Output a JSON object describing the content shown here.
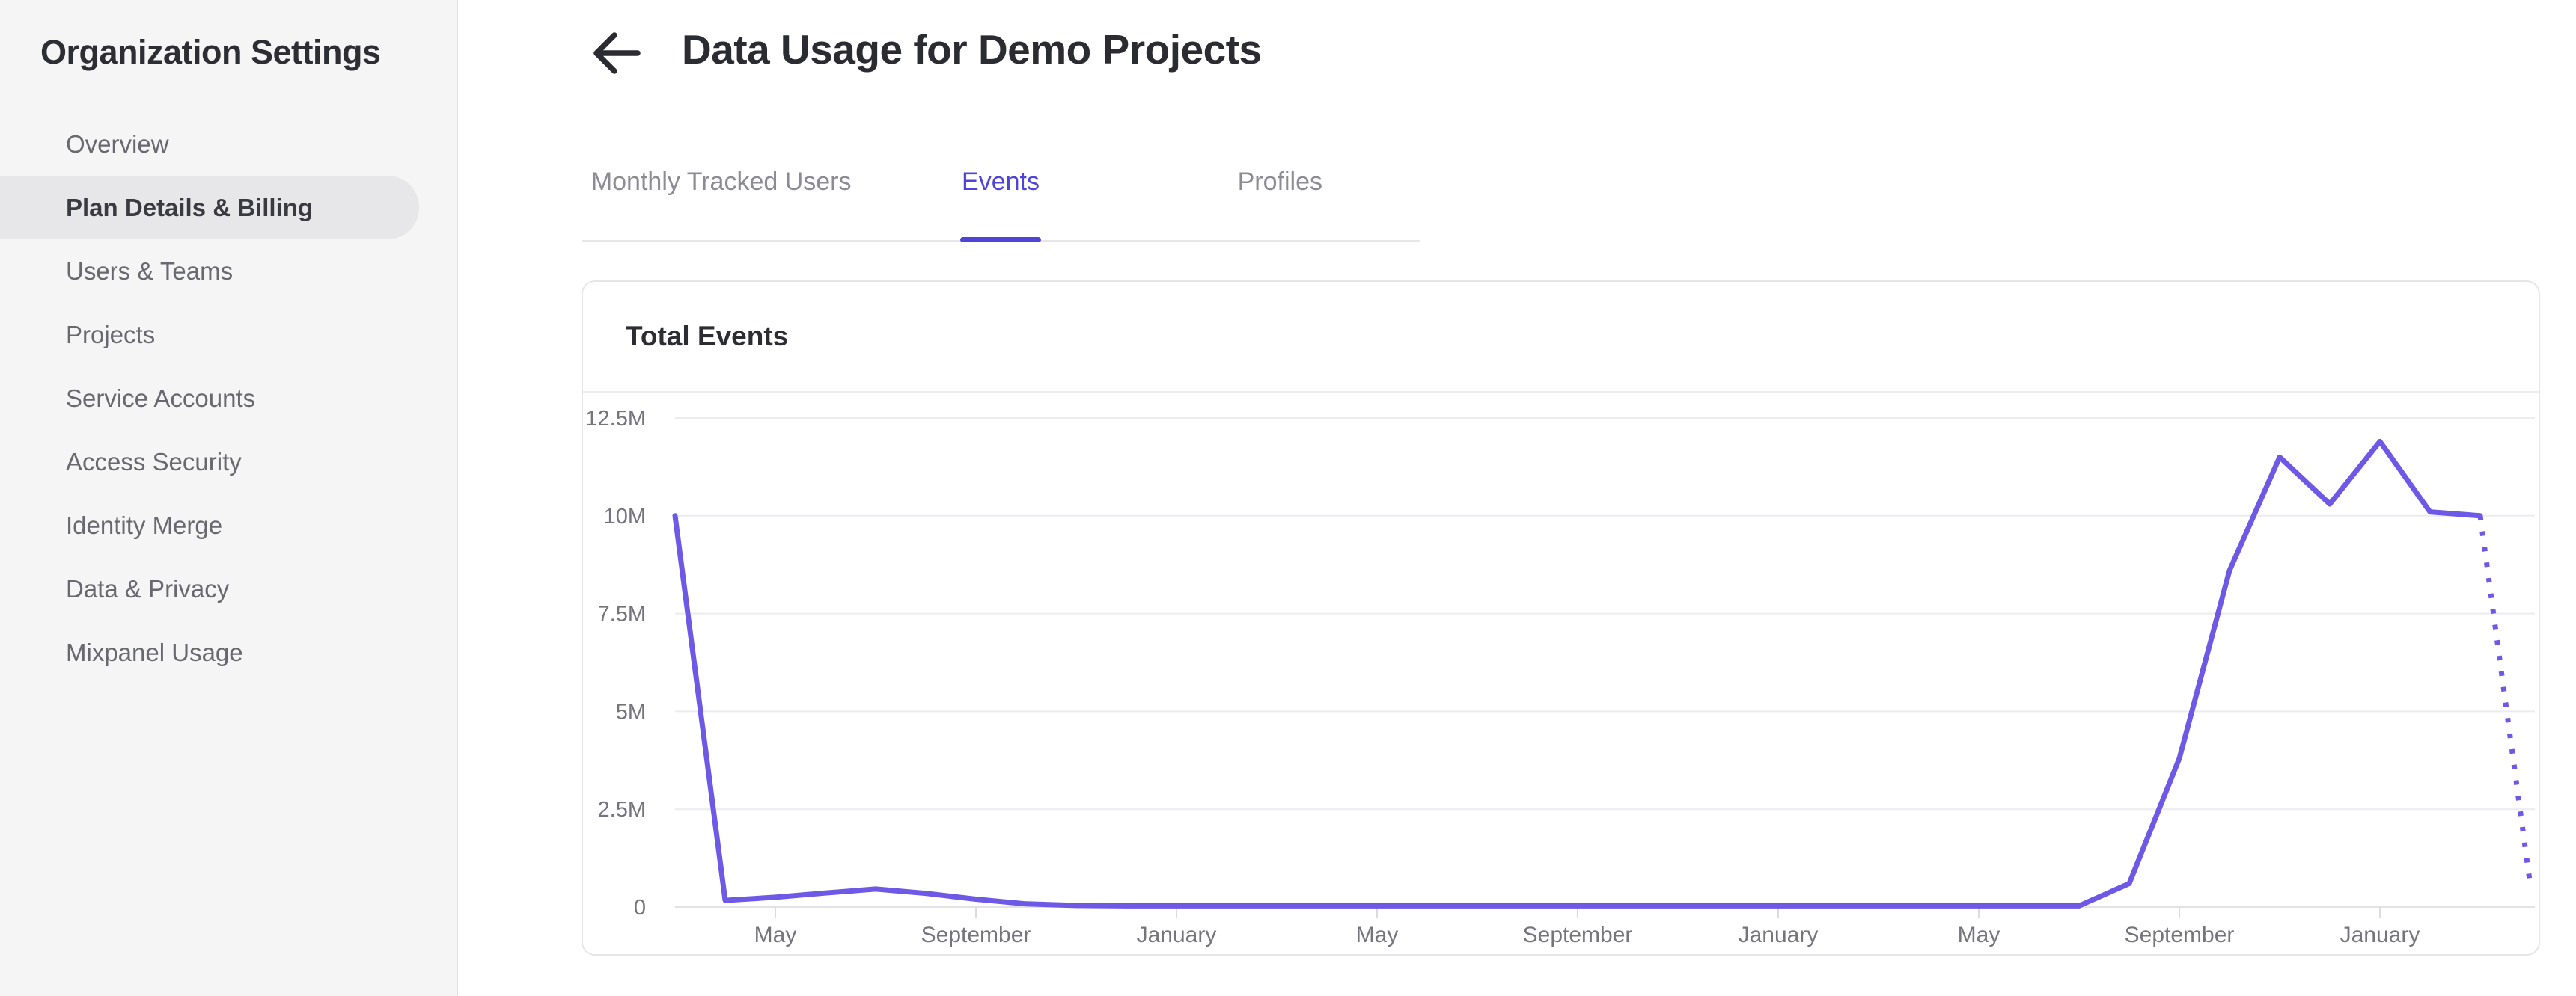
{
  "sidebar": {
    "title": "Organization Settings",
    "items": [
      {
        "label": "Overview",
        "selected": false
      },
      {
        "label": "Plan Details & Billing",
        "selected": true
      },
      {
        "label": "Users & Teams",
        "selected": false
      },
      {
        "label": "Projects",
        "selected": false
      },
      {
        "label": "Service Accounts",
        "selected": false
      },
      {
        "label": "Access Security",
        "selected": false
      },
      {
        "label": "Identity Merge",
        "selected": false
      },
      {
        "label": "Data & Privacy",
        "selected": false
      },
      {
        "label": "Mixpanel Usage",
        "selected": false
      }
    ]
  },
  "header": {
    "title": "Data Usage for Demo Projects",
    "back_icon": "arrow-left"
  },
  "tabs": [
    {
      "label": "Monthly Tracked Users",
      "active": false
    },
    {
      "label": "Events",
      "active": true
    },
    {
      "label": "Profiles",
      "active": false
    }
  ],
  "card": {
    "title": "Total Events"
  },
  "colors": {
    "accent_purple": "#4f44d7",
    "line_purple": "#6e58e6",
    "sidebar_bg": "#f5f5f6",
    "selected_pill": "#e7e7e9",
    "gridline": "#ececf0",
    "axis_label": "#74747c"
  },
  "chart_data": {
    "type": "line",
    "title": "Total Events",
    "series_name": "Total Events",
    "unit": "events per month",
    "ylim_millions": [
      0,
      12.5
    ],
    "y_tick_labels": [
      "0",
      "2.5M",
      "5M",
      "7.5M",
      "10M",
      "12.5M"
    ],
    "x_tick_labels": [
      "May",
      "September",
      "January",
      "May",
      "September",
      "January",
      "May",
      "September",
      "January"
    ],
    "x_tick_indices": [
      2,
      6,
      10,
      14,
      18,
      22,
      26,
      30,
      34
    ],
    "values_millions": [
      10.0,
      0.17,
      0.25,
      0.36,
      0.46,
      0.35,
      0.2,
      0.08,
      0.04,
      0.03,
      0.03,
      0.03,
      0.03,
      0.03,
      0.03,
      0.03,
      0.03,
      0.03,
      0.03,
      0.03,
      0.03,
      0.03,
      0.03,
      0.03,
      0.03,
      0.03,
      0.03,
      0.03,
      0.03,
      0.6,
      3.8,
      8.6,
      11.5,
      10.3,
      11.9,
      10.1,
      10.0,
      0.55
    ],
    "dashed_from_index": 36,
    "dashed_segment_meaning": "projected/incomplete period",
    "grid": true,
    "legend": false,
    "line_color": "#6e58e6"
  }
}
